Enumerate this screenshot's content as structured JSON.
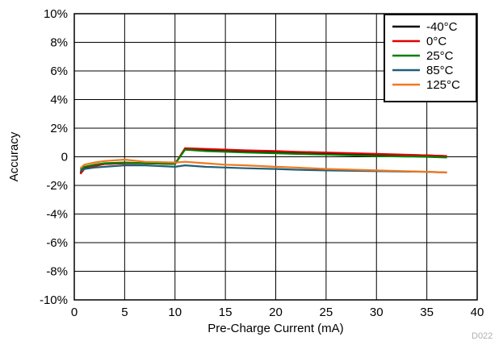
{
  "chart_data": {
    "type": "line",
    "xlabel": "Pre-Charge Current (mA)",
    "ylabel": "Accuracy",
    "xlim": [
      0,
      40
    ],
    "ylim": [
      -10,
      10
    ],
    "x_ticks": [
      0,
      5,
      10,
      15,
      20,
      25,
      30,
      35,
      40
    ],
    "x_tick_labels": [
      "0",
      "5",
      "10",
      "15",
      "20",
      "25",
      "30",
      "35",
      "40"
    ],
    "y_ticks": [
      -10,
      -8,
      -6,
      -4,
      -2,
      0,
      2,
      4,
      6,
      8,
      10
    ],
    "y_tick_labels": [
      "-10%",
      "-8%",
      "-6%",
      "-4%",
      "-2%",
      "0",
      "2%",
      "4%",
      "6%",
      "8%",
      "10%"
    ],
    "grid": true,
    "legend_position": "top-right",
    "code": "D022",
    "series": [
      {
        "name": "-40°C",
        "color": "#000000",
        "x": [
          0.6,
          1,
          2,
          3,
          5,
          7,
          10,
          11,
          13,
          15,
          17,
          20,
          22,
          25,
          30,
          35,
          37
        ],
        "y": [
          -1.1,
          -0.8,
          -0.6,
          -0.5,
          -0.45,
          -0.45,
          -0.5,
          0.55,
          0.5,
          0.45,
          0.4,
          0.35,
          0.3,
          0.25,
          0.15,
          0.1,
          0.05
        ]
      },
      {
        "name": "0°C",
        "color": "#e00000",
        "x": [
          0.6,
          1,
          2,
          3,
          5,
          7,
          10,
          11,
          13,
          15,
          17,
          20,
          22,
          25,
          30,
          35,
          37
        ],
        "y": [
          -1.2,
          -0.85,
          -0.65,
          -0.5,
          -0.45,
          -0.45,
          -0.5,
          0.6,
          0.55,
          0.5,
          0.45,
          0.4,
          0.35,
          0.3,
          0.2,
          0.1,
          0.05
        ]
      },
      {
        "name": "25°C",
        "color": "#008000",
        "x": [
          0.6,
          1,
          2,
          3,
          5,
          7,
          10,
          11,
          13,
          15,
          17,
          20,
          22,
          25,
          30,
          35,
          37
        ],
        "y": [
          -0.9,
          -0.7,
          -0.55,
          -0.45,
          -0.4,
          -0.45,
          -0.5,
          0.5,
          0.4,
          0.35,
          0.3,
          0.25,
          0.2,
          0.15,
          0.05,
          0.0,
          -0.05
        ]
      },
      {
        "name": "85°C",
        "color": "#1f5f7a",
        "x": [
          0.6,
          1,
          2,
          3,
          5,
          7,
          10,
          11,
          13,
          15,
          17,
          20,
          22,
          25,
          30,
          35,
          37
        ],
        "y": [
          -1.0,
          -0.85,
          -0.75,
          -0.7,
          -0.6,
          -0.6,
          -0.7,
          -0.6,
          -0.7,
          -0.75,
          -0.8,
          -0.85,
          -0.9,
          -0.95,
          -1.0,
          -1.05,
          -1.1
        ]
      },
      {
        "name": "125°C",
        "color": "#f07820",
        "x": [
          0.6,
          1,
          2,
          3,
          5,
          7,
          10,
          11,
          13,
          15,
          17,
          20,
          22,
          25,
          30,
          35,
          37
        ],
        "y": [
          -0.8,
          -0.55,
          -0.4,
          -0.3,
          -0.2,
          -0.35,
          -0.4,
          -0.35,
          -0.45,
          -0.55,
          -0.6,
          -0.7,
          -0.75,
          -0.85,
          -0.95,
          -1.05,
          -1.1
        ]
      }
    ]
  }
}
